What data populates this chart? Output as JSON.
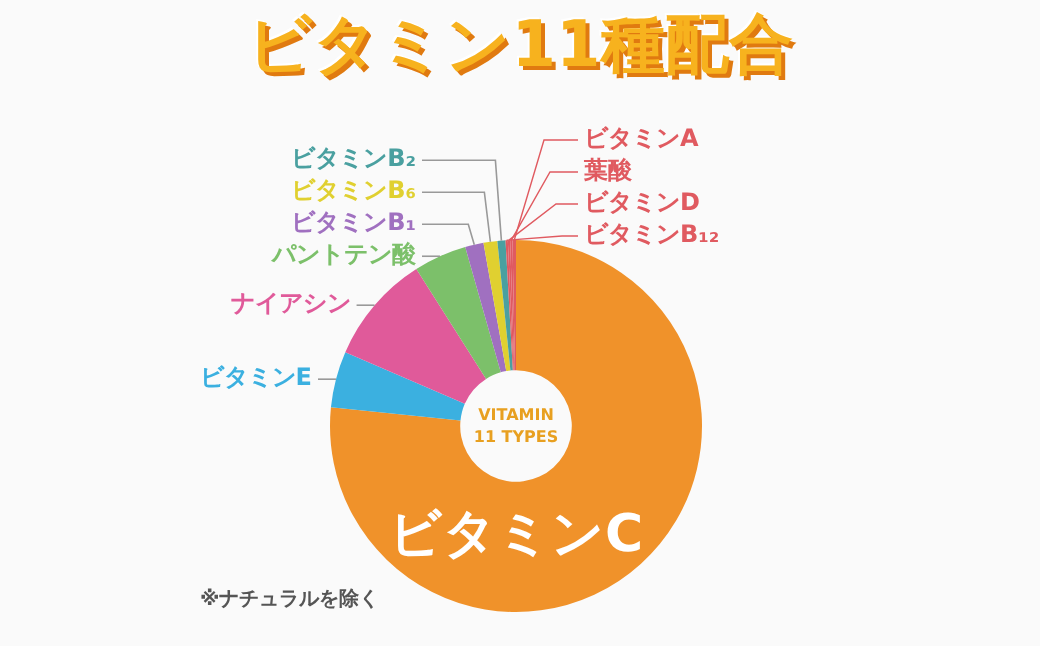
{
  "chart_data": {
    "type": "donut",
    "title": "ビタミン11種配合",
    "categories": [
      "ビタミンC",
      "ビタミンE",
      "ナイアシン",
      "パントテン酸",
      "ビタミンB₁",
      "ビタミンB₆",
      "ビタミンB₂",
      "ビタミンB₁₂",
      "ビタミンD",
      "葉酸",
      "ビタミンA"
    ],
    "values": [
      76.6,
      4.9,
      9.5,
      4.6,
      1.6,
      1.2,
      0.7,
      0.2,
      0.2,
      0.2,
      0.3
    ],
    "colors": [
      "#f0922a",
      "#3bb0e0",
      "#e05a9a",
      "#7cc06a",
      "#a070c0",
      "#e0d030",
      "#4aa0a0",
      "#e05a60",
      "#e05a60",
      "#e05a60",
      "#e05a60"
    ],
    "legend": false,
    "annotations": [
      "VITAMIN",
      "11 TYPES",
      "※ナチュラルを除く"
    ]
  }
}
